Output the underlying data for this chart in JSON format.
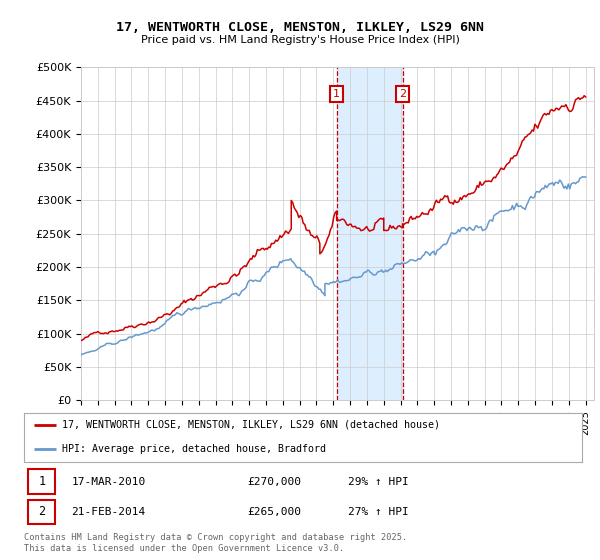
{
  "title_line1": "17, WENTWORTH CLOSE, MENSTON, ILKLEY, LS29 6NN",
  "title_line2": "Price paid vs. HM Land Registry's House Price Index (HPI)",
  "ylabel_ticks": [
    "£0",
    "£50K",
    "£100K",
    "£150K",
    "£200K",
    "£250K",
    "£300K",
    "£350K",
    "£400K",
    "£450K",
    "£500K"
  ],
  "ytick_values": [
    0,
    50000,
    100000,
    150000,
    200000,
    250000,
    300000,
    350000,
    400000,
    450000,
    500000
  ],
  "x_start_year": 1995,
  "x_end_year": 2025,
  "sale1_year": 2010.2,
  "sale1_price": 270000,
  "sale1_label": "1",
  "sale1_date": "17-MAR-2010",
  "sale1_hpi_pct": "29%",
  "sale2_year": 2014.12,
  "sale2_price": 265000,
  "sale2_label": "2",
  "sale2_date": "21-FEB-2014",
  "sale2_hpi_pct": "27%",
  "red_color": "#cc0000",
  "blue_color": "#6699cc",
  "shade_color": "#ddeeff",
  "background_color": "#ffffff",
  "grid_color": "#cccccc",
  "legend_label_red": "17, WENTWORTH CLOSE, MENSTON, ILKLEY, LS29 6NN (detached house)",
  "legend_label_blue": "HPI: Average price, detached house, Bradford",
  "footnote": "Contains HM Land Registry data © Crown copyright and database right 2025.\nThis data is licensed under the Open Government Licence v3.0."
}
